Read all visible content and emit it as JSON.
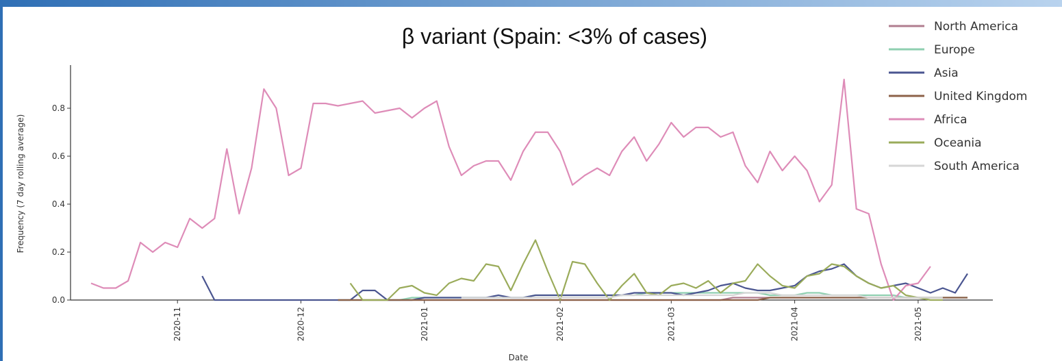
{
  "chart_data": {
    "type": "line",
    "title": "β variant (Spain: <3% of cases)",
    "x_label": "Date",
    "y_label": "Frequency (7 day rolling average)",
    "categories": [
      null,
      null,
      null,
      null,
      null,
      null,
      null,
      "2020-11",
      null,
      null,
      null,
      null,
      null,
      null,
      null,
      null,
      null,
      "2020-12",
      null,
      null,
      null,
      null,
      null,
      null,
      null,
      null,
      null,
      "2021-01",
      null,
      null,
      null,
      null,
      null,
      null,
      null,
      null,
      null,
      null,
      "2021-02",
      null,
      null,
      null,
      null,
      null,
      null,
      null,
      null,
      "2021-03",
      null,
      null,
      null,
      null,
      null,
      null,
      null,
      null,
      null,
      "2021-04",
      null,
      null,
      null,
      null,
      null,
      null,
      null,
      null,
      null,
      "2021-05",
      null,
      null,
      null,
      null
    ],
    "ylim": [
      0,
      0.98
    ],
    "yticks": [
      {
        "value": 0,
        "label": "0.0"
      },
      0.2,
      0.4,
      0.6,
      0.8
    ],
    "legend": "upper right",
    "grid": false,
    "series": [
      {
        "name": "North America",
        "color": "#b07d8f",
        "values": [
          null,
          null,
          null,
          null,
          null,
          null,
          null,
          null,
          null,
          null,
          null,
          null,
          null,
          null,
          null,
          null,
          null,
          null,
          null,
          null,
          0,
          0,
          0,
          0,
          0,
          0,
          0,
          0,
          0,
          0,
          0,
          0,
          0,
          0,
          0,
          0,
          0,
          0,
          0,
          0,
          0,
          0,
          0,
          0,
          0,
          0,
          0,
          0,
          0,
          0,
          0,
          0,
          0.01,
          0.01,
          0.01,
          0.01,
          0.01,
          0.01,
          0.01,
          0.01,
          0.01,
          0.01,
          0.01,
          0.01,
          0.01,
          0.01,
          0.01,
          0.01,
          0.01,
          0.01,
          0.01,
          0.01
        ]
      },
      {
        "name": "Europe",
        "color": "#8fcfb0",
        "values": [
          null,
          null,
          null,
          null,
          null,
          null,
          null,
          null,
          null,
          null,
          null,
          null,
          null,
          null,
          null,
          null,
          null,
          null,
          null,
          null,
          0,
          0,
          0,
          0,
          0,
          0,
          0.01,
          0.01,
          0.01,
          0.01,
          0.01,
          0.01,
          0.01,
          0.01,
          0.01,
          0.01,
          0.02,
          0.02,
          0.02,
          0.02,
          0.02,
          0.02,
          0.02,
          0.02,
          0.02,
          0.03,
          0.03,
          0.03,
          0.03,
          0.03,
          0.03,
          0.03,
          0.03,
          0.03,
          0.03,
          0.02,
          0.02,
          0.02,
          0.03,
          0.03,
          0.02,
          0.02,
          0.02,
          0.02,
          0.02,
          0.02,
          0.01,
          0.01,
          0.01,
          0.01,
          0.01,
          0.01
        ]
      },
      {
        "name": "Asia",
        "color": "#4a5590",
        "values": [
          null,
          null,
          null,
          null,
          null,
          null,
          null,
          null,
          null,
          0.1,
          0,
          0,
          0,
          0,
          0,
          0,
          0,
          0,
          0,
          0,
          0,
          0,
          0.04,
          0.04,
          0,
          0,
          0,
          0.01,
          0.01,
          0.01,
          0.01,
          0.01,
          0.01,
          0.02,
          0.01,
          0.01,
          0.02,
          0.02,
          0.02,
          0.02,
          0.02,
          0.02,
          0.02,
          0.02,
          0.03,
          0.03,
          0.03,
          0.03,
          0.02,
          0.03,
          0.04,
          0.06,
          0.07,
          0.05,
          0.04,
          0.04,
          0.05,
          0.06,
          0.1,
          0.12,
          0.13,
          0.15,
          0.1,
          0.07,
          0.05,
          0.06,
          0.07,
          0.05,
          0.03,
          0.05,
          0.03,
          0.11
        ]
      },
      {
        "name": "United Kingdom",
        "color": "#8c6248",
        "values": [
          null,
          null,
          null,
          null,
          null,
          null,
          null,
          null,
          null,
          null,
          null,
          null,
          null,
          null,
          null,
          null,
          null,
          null,
          null,
          null,
          0,
          0,
          0,
          0,
          0,
          0,
          0,
          0,
          0,
          0,
          0,
          0,
          0,
          0,
          0,
          0,
          0,
          0,
          0,
          0,
          0,
          0,
          0,
          0,
          0,
          0,
          0,
          0,
          0,
          0,
          0,
          0,
          0,
          0,
          0,
          0.01,
          0.01,
          0.01,
          0.01,
          0.01,
          0.01,
          0.01,
          0.01,
          0.01,
          0.01,
          0.01,
          0.01,
          0.01,
          0.01,
          0.01,
          0.01,
          0.01
        ]
      },
      {
        "name": "Africa",
        "color": "#de8cb8",
        "values": [
          0.07,
          0.05,
          0.05,
          0.08,
          0.24,
          0.2,
          0.24,
          0.22,
          0.34,
          0.3,
          0.34,
          0.63,
          0.36,
          0.55,
          0.88,
          0.8,
          0.52,
          0.55,
          0.82,
          0.82,
          0.81,
          0.82,
          0.83,
          0.78,
          0.79,
          0.8,
          0.76,
          0.8,
          0.83,
          0.64,
          0.52,
          0.56,
          0.58,
          0.58,
          0.5,
          0.62,
          0.7,
          0.7,
          0.62,
          0.48,
          0.52,
          0.55,
          0.52,
          0.62,
          0.68,
          0.58,
          0.65,
          0.74,
          0.68,
          0.72,
          0.72,
          0.68,
          0.7,
          0.56,
          0.49,
          0.62,
          0.54,
          0.6,
          0.54,
          0.41,
          0.48,
          0.92,
          0.38,
          0.36,
          0.15,
          0,
          0.06,
          0.07,
          0.14,
          null,
          null,
          null
        ]
      },
      {
        "name": "Oceania",
        "color": "#9aab5a",
        "values": [
          null,
          null,
          null,
          null,
          null,
          null,
          null,
          null,
          null,
          null,
          null,
          null,
          null,
          null,
          null,
          null,
          null,
          null,
          null,
          null,
          null,
          0.07,
          0,
          0,
          0,
          0.05,
          0.06,
          0.03,
          0.02,
          0.07,
          0.09,
          0.08,
          0.15,
          0.14,
          0.04,
          0.15,
          0.25,
          0.12,
          0,
          0.16,
          0.15,
          0.07,
          0,
          0.06,
          0.11,
          0.03,
          0.02,
          0.06,
          0.07,
          0.05,
          0.08,
          0.03,
          0.07,
          0.08,
          0.15,
          0.1,
          0.06,
          0.05,
          0.1,
          0.11,
          0.15,
          0.14,
          0.1,
          0.07,
          0.05,
          0.06,
          0.02,
          0.01,
          0,
          0,
          null,
          null
        ]
      },
      {
        "name": "South America",
        "color": "#d6d6d6",
        "values": [
          null,
          null,
          null,
          null,
          null,
          null,
          null,
          null,
          null,
          null,
          null,
          null,
          null,
          null,
          null,
          null,
          null,
          null,
          null,
          null,
          null,
          null,
          null,
          null,
          null,
          null,
          null,
          null,
          null,
          null,
          0.01,
          0.01,
          0.01,
          0.01,
          0.01,
          0.01,
          0.01,
          0.01,
          0.01,
          0.01,
          0.01,
          0.01,
          0.01,
          0.02,
          0.02,
          0.02,
          0.02,
          0.02,
          0.02,
          0.02,
          0.02,
          0.02,
          0.02,
          0.03,
          0.03,
          0.03,
          0.02,
          0.02,
          0.02,
          0.02,
          0.02,
          0.02,
          0.02,
          0.01,
          0.01,
          0.01,
          0.01,
          0.01,
          0.01,
          0.01,
          null,
          null
        ]
      }
    ]
  }
}
